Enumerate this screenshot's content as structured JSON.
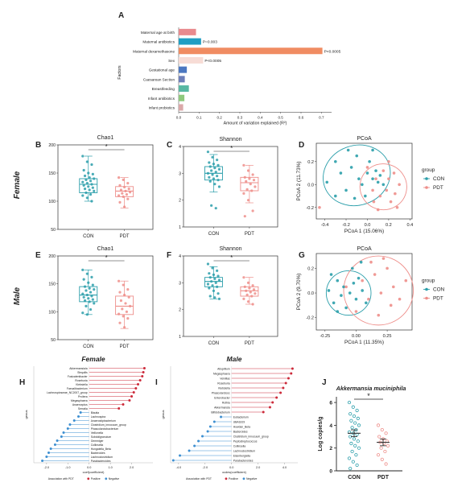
{
  "panel_letters": [
    "A",
    "B",
    "C",
    "D",
    "E",
    "F",
    "G",
    "H",
    "I",
    "J"
  ],
  "panelA": {
    "title": "",
    "ylabel": "Factors",
    "xlabel": "Amount of variation explained (R²)",
    "xticks": [
      "0.0",
      "0.1",
      "0.2",
      "0.3",
      "0.4",
      "0.5",
      "0.6",
      "0.7"
    ],
    "xlim": [
      0,
      0.75
    ],
    "bars": [
      {
        "label": "Maternal age at birth",
        "value": 0.085,
        "color": "#e98a8e",
        "annot": ""
      },
      {
        "label": "Maternal antibiotics",
        "value": 0.11,
        "color": "#1f9ec3",
        "annot": "P=0.003"
      },
      {
        "label": "Maternal dexamethasone",
        "value": 0.705,
        "color": "#f08c62",
        "annot": "P<0.0005"
      },
      {
        "label": "Sex",
        "value": 0.12,
        "color": "#f7dcd6",
        "annot": "P<0.0005"
      },
      {
        "label": "Gestational age",
        "value": 0.04,
        "color": "#4c78c1",
        "annot": ""
      },
      {
        "label": "Caesarean Section",
        "value": 0.03,
        "color": "#6e7fb9",
        "annot": ""
      },
      {
        "label": "Breastfeeding",
        "value": 0.05,
        "color": "#58b8a3",
        "annot": ""
      },
      {
        "label": "Infant antibiotics",
        "value": 0.028,
        "color": "#8fc97d",
        "annot": ""
      },
      {
        "label": "Infant probiotics",
        "value": 0.022,
        "color": "#dba8a8",
        "annot": ""
      }
    ]
  },
  "rowlabels": {
    "female": "Female",
    "male": "Male"
  },
  "groups": [
    "CON",
    "PDT"
  ],
  "legend": {
    "title": "group",
    "items": [
      "CON",
      "PDT"
    ]
  },
  "colors": {
    "con": "#2a9eaa",
    "pdt": "#ee8e8a",
    "neg": "#3d8fd1",
    "pos": "#cc2a3a"
  },
  "panelB": {
    "title": "Chao1",
    "yticks": [
      "50",
      "100",
      "150",
      "200"
    ],
    "ylim": [
      50,
      200
    ],
    "sig": "*",
    "con": {
      "q1": 115,
      "median": 130,
      "q3": 140,
      "low": 100,
      "high": 180,
      "points": [
        180,
        170,
        165,
        155,
        150,
        148,
        145,
        142,
        140,
        138,
        136,
        134,
        132,
        130,
        128,
        126,
        124,
        122,
        120,
        118,
        115,
        112,
        110,
        106,
        100
      ]
    },
    "pdt": {
      "q1": 108,
      "median": 118,
      "q3": 126,
      "low": 88,
      "high": 142,
      "points": [
        142,
        138,
        132,
        128,
        125,
        122,
        120,
        118,
        116,
        114,
        112,
        110,
        108,
        104,
        98,
        90
      ]
    }
  },
  "panelC": {
    "title": "Shannon",
    "yticks": [
      "1",
      "2",
      "3",
      "4"
    ],
    "ylim": [
      1,
      4
    ],
    "sig": "*",
    "con": {
      "q1": 2.75,
      "median": 3.0,
      "q3": 3.25,
      "low": 2.3,
      "high": 3.7,
      "points": [
        3.8,
        3.6,
        3.5,
        3.4,
        3.35,
        3.3,
        3.25,
        3.2,
        3.15,
        3.1,
        3.05,
        3.0,
        2.95,
        2.9,
        2.85,
        2.8,
        2.75,
        2.7,
        2.6,
        2.5,
        1.8,
        1.7
      ]
    },
    "pdt": {
      "q1": 2.35,
      "median": 2.65,
      "q3": 2.85,
      "low": 1.9,
      "high": 3.3,
      "points": [
        3.3,
        3.1,
        2.95,
        2.85,
        2.8,
        2.75,
        2.7,
        2.6,
        2.5,
        2.4,
        2.35,
        2.25,
        2.0,
        1.6,
        1.4
      ]
    }
  },
  "panelD": {
    "title": "PCoA",
    "xlabel": "PCoA 1 (15.06%)",
    "ylabel": "PCoA 2 (11.73%)",
    "xticks": [
      "-0.4",
      "-0.2",
      "0.0",
      "0.2",
      "0.4"
    ],
    "yticks": [
      "-0.2",
      "0.0",
      "0.2"
    ],
    "xlim": [
      -0.48,
      0.42
    ],
    "ylim": [
      -0.3,
      0.36
    ],
    "con": [
      [
        -0.38,
        0.02
      ],
      [
        -0.3,
        0.2
      ],
      [
        -0.25,
        0.1
      ],
      [
        -0.2,
        -0.05
      ],
      [
        -0.15,
        0.15
      ],
      [
        -0.1,
        0.25
      ],
      [
        -0.08,
        0.05
      ],
      [
        -0.05,
        0.0
      ],
      [
        0.0,
        0.1
      ],
      [
        0.02,
        0.2
      ],
      [
        0.05,
        0.05
      ],
      [
        0.08,
        0.12
      ],
      [
        0.1,
        0.02
      ],
      [
        0.12,
        0.08
      ],
      [
        -0.12,
        -0.12
      ],
      [
        -0.02,
        -0.1
      ],
      [
        0.15,
        0.0
      ],
      [
        -0.3,
        -0.1
      ],
      [
        -0.18,
        0.3
      ],
      [
        0.05,
        0.3
      ]
    ],
    "pdt": [
      [
        0.0,
        0.15
      ],
      [
        0.05,
        -0.05
      ],
      [
        0.08,
        0.05
      ],
      [
        0.12,
        -0.1
      ],
      [
        0.15,
        0.12
      ],
      [
        0.18,
        -0.05
      ],
      [
        0.2,
        0.05
      ],
      [
        0.22,
        -0.15
      ],
      [
        0.25,
        0.1
      ],
      [
        0.28,
        -0.2
      ],
      [
        0.3,
        0.0
      ],
      [
        0.1,
        -0.22
      ],
      [
        0.2,
        0.2
      ],
      [
        0.06,
        -0.15
      ],
      [
        0.26,
        -0.08
      ],
      [
        -0.45,
        -0.2
      ]
    ],
    "ell_con": {
      "cx": -0.1,
      "cy": 0.08,
      "rx": 0.32,
      "ry": 0.26,
      "rot": -20
    },
    "ell_pdt": {
      "cx": 0.15,
      "cy": -0.02,
      "rx": 0.22,
      "ry": 0.2,
      "rot": 10
    }
  },
  "panelE": {
    "title": "Chao1",
    "yticks": [
      "50",
      "100",
      "150",
      "200"
    ],
    "ylim": [
      50,
      200
    ],
    "sig": "*",
    "con": {
      "q1": 118,
      "median": 130,
      "q3": 145,
      "low": 95,
      "high": 175,
      "points": [
        175,
        168,
        162,
        158,
        152,
        148,
        145,
        142,
        140,
        138,
        135,
        132,
        130,
        128,
        126,
        124,
        122,
        120,
        118,
        115,
        110,
        104,
        98,
        95
      ]
    },
    "pdt": {
      "q1": 95,
      "median": 110,
      "q3": 128,
      "low": 70,
      "high": 155,
      "points": [
        155,
        148,
        140,
        135,
        130,
        126,
        120,
        115,
        110,
        105,
        100,
        96,
        92,
        88,
        80,
        72
      ]
    }
  },
  "panelF": {
    "title": "Shannon",
    "yticks": [
      "1",
      "2",
      "3",
      "4"
    ],
    "ylim": [
      1,
      4
    ],
    "sig": "*",
    "con": {
      "q1": 2.85,
      "median": 3.05,
      "q3": 3.2,
      "low": 2.4,
      "high": 3.6,
      "points": [
        3.7,
        3.55,
        3.45,
        3.35,
        3.3,
        3.25,
        3.2,
        3.15,
        3.1,
        3.05,
        3.0,
        2.95,
        2.9,
        2.85,
        2.8,
        2.7,
        2.6,
        2.5,
        2.45,
        2.4
      ]
    },
    "pdt": {
      "q1": 2.5,
      "median": 2.7,
      "q3": 2.85,
      "low": 2.2,
      "high": 3.2,
      "points": [
        3.2,
        3.0,
        2.9,
        2.85,
        2.8,
        2.75,
        2.7,
        2.65,
        2.6,
        2.55,
        2.5,
        2.4,
        2.3,
        2.2
      ]
    }
  },
  "panelG": {
    "title": "PCoA",
    "xlabel": "PCoA 1 (11.35%)",
    "ylabel": "PCoA 2 (9.70%)",
    "xticks": [
      "-0.25",
      "0.00",
      "0.25"
    ],
    "yticks": [
      "-0.2",
      "0.0",
      "0.2"
    ],
    "xlim": [
      -0.32,
      0.45
    ],
    "ylim": [
      -0.3,
      0.32
    ],
    "con": [
      [
        -0.22,
        0.02
      ],
      [
        -0.18,
        -0.08
      ],
      [
        -0.15,
        0.1
      ],
      [
        -0.12,
        -0.02
      ],
      [
        -0.1,
        0.05
      ],
      [
        -0.08,
        -0.12
      ],
      [
        -0.05,
        0.0
      ],
      [
        -0.02,
        0.08
      ],
      [
        0.0,
        -0.05
      ],
      [
        0.02,
        0.12
      ],
      [
        0.05,
        0.02
      ],
      [
        -0.15,
        -0.15
      ],
      [
        0.08,
        -0.08
      ],
      [
        -0.03,
        0.2
      ],
      [
        0.04,
        0.25
      ],
      [
        -0.2,
        0.15
      ]
    ],
    "pdt": [
      [
        0.05,
        0.1
      ],
      [
        0.1,
        -0.05
      ],
      [
        0.15,
        0.15
      ],
      [
        0.2,
        0.0
      ],
      [
        0.25,
        0.2
      ],
      [
        0.28,
        -0.1
      ],
      [
        0.3,
        0.05
      ],
      [
        0.35,
        -0.05
      ],
      [
        0.18,
        -0.18
      ],
      [
        0.12,
        0.25
      ],
      [
        -0.08,
        0.05
      ],
      [
        0.0,
        -0.15
      ],
      [
        0.4,
        0.1
      ],
      [
        0.22,
        0.28
      ]
    ],
    "ell_con": {
      "cx": -0.06,
      "cy": 0.0,
      "rx": 0.18,
      "ry": 0.18,
      "rot": 0
    },
    "ell_pdt": {
      "cx": 0.18,
      "cy": 0.02,
      "rx": 0.28,
      "ry": 0.28,
      "rot": 0
    }
  },
  "panelH": {
    "title": "Female",
    "ylabel": "genus",
    "xlabel": "coef(coefficient)",
    "xticks": [
      "-2.0",
      "-1.0",
      "0.0",
      "1.0",
      "2.0"
    ],
    "xlim": [
      -2.6,
      3.0
    ],
    "legend_title": "Association with PDT",
    "legend_pos": "Positive",
    "legend_neg": "Negative",
    "taxa": [
      {
        "name": "Akkermansia/a",
        "value": 2.6
      },
      {
        "name": "Slequilis",
        "value": 2.55
      },
      {
        "name": "Fusicatenibacter",
        "value": 2.5
      },
      {
        "name": "Roseburia",
        "value": 2.4
      },
      {
        "name": "Klebsiella",
        "value": 2.3
      },
      {
        "name": "Faecalibacterium",
        "value": 2.2
      },
      {
        "name": "Lachnospiraceae_NC2007_group",
        "value": 2.1
      },
      {
        "name": "Prvitera",
        "value": 2.0
      },
      {
        "name": "Megasphaera",
        "value": 1.9
      },
      {
        "name": "Anaeroxplus",
        "value": 1.6
      },
      {
        "name": "Serratia",
        "value": 1.4
      },
      {
        "name": "Blautia",
        "value": -0.4
      },
      {
        "name": "Lachnospira",
        "value": -0.5
      },
      {
        "name": "Anaerostipbacterium",
        "value": -0.7
      },
      {
        "name": "Clostridium_innocuum_group",
        "value": -0.9
      },
      {
        "name": "Phascolarctobacterium",
        "value": -1.0
      },
      {
        "name": "Veillonella",
        "value": -1.2
      },
      {
        "name": "Subdoligranulum",
        "value": -1.3
      },
      {
        "name": "Gemmiger",
        "value": -1.5
      },
      {
        "name": "Collinsella",
        "value": -1.6
      },
      {
        "name": "Hungatella_Beta",
        "value": -1.8
      },
      {
        "name": "Bacteroides",
        "value": -1.9
      },
      {
        "name": "Lachnoclostridium",
        "value": -2.0
      },
      {
        "name": "Parabacteroides",
        "value": -2.2
      }
    ]
  },
  "panelI": {
    "title": "Male",
    "ylabel": "genus",
    "xlabel": "ocdes(coefficient)",
    "xticks": [
      "-4.0",
      "-2.0",
      "0.0",
      "2.0",
      "4.0"
    ],
    "xlim": [
      -4.6,
      5.0
    ],
    "legend_title": "Association with PDT",
    "legend_pos": "Positive",
    "legend_neg": "Negative",
    "taxa": [
      {
        "name": "Alloprillum",
        "value": 4.6
      },
      {
        "name": "Megasphaera",
        "value": 4.5
      },
      {
        "name": "Veinillas",
        "value": 4.3
      },
      {
        "name": "Roseburia",
        "value": 4.1
      },
      {
        "name": "Klebsiella",
        "value": 3.9
      },
      {
        "name": "Phascolarctosc",
        "value": 3.7
      },
      {
        "name": "Enterobacter",
        "value": 3.4
      },
      {
        "name": "Rothia",
        "value": 3.1
      },
      {
        "name": "Akkermansia",
        "value": 2.9
      },
      {
        "name": "Bifidobacterium",
        "value": 2.4
      },
      {
        "name": "Eubacterium",
        "value": -0.8
      },
      {
        "name": "UBA1819",
        "value": -1.3
      },
      {
        "name": "Howdan_Beta",
        "value": -1.6
      },
      {
        "name": "Bacteroides",
        "value": -1.8
      },
      {
        "name": "Clostridium_innocuum_group",
        "value": -2.2
      },
      {
        "name": "Peptostreptococcus",
        "value": -2.5
      },
      {
        "name": "Collinsella",
        "value": -2.8
      },
      {
        "name": "Lachnoclostridium",
        "value": -3.2
      },
      {
        "name": "Eisenbergiella",
        "value": -3.9
      },
      {
        "name": "Parabacteroides",
        "value": -4.4
      }
    ]
  },
  "panelJ": {
    "title": "Akkermansia muciniphila",
    "ylabel": "Log copies/g",
    "sig": "*",
    "yticks": [
      "0",
      "2",
      "4",
      "6"
    ],
    "ylim": [
      0,
      6.5
    ],
    "con": {
      "mean": 3.3,
      "sem": 0.3,
      "points": [
        6.0,
        5.6,
        5.3,
        5.0,
        4.8,
        4.6,
        4.4,
        4.2,
        4.0,
        3.8,
        3.6,
        3.4,
        3.3,
        3.2,
        3.0,
        2.8,
        2.6,
        2.4,
        2.2,
        2.0,
        1.7,
        1.4,
        1.1,
        0.8,
        0.5,
        0.2
      ]
    },
    "pdt": {
      "mean": 2.5,
      "sem": 0.3,
      "points": [
        4.0,
        3.6,
        3.3,
        3.0,
        2.8,
        2.6,
        2.5,
        2.4,
        2.2,
        2.0,
        1.7,
        1.4,
        1.0,
        0.6
      ]
    }
  },
  "chart_data": [
    {
      "type": "bar",
      "id": "A",
      "orientation": "horizontal",
      "categories": [
        "Maternal age at birth",
        "Maternal antibiotics",
        "Maternal dexamethasone",
        "Sex",
        "Gestational age",
        "Caesarean Section",
        "Breastfeeding",
        "Infant antibiotics",
        "Infant probiotics"
      ],
      "values": [
        0.085,
        0.11,
        0.705,
        0.12,
        0.04,
        0.03,
        0.05,
        0.028,
        0.022
      ],
      "xlabel": "Amount of variation explained (R²)",
      "ylabel": "Factors",
      "xlim": [
        0,
        0.75
      ],
      "annotations": [
        "",
        "P=0.003",
        "P<0.0005",
        "P<0.0005",
        "",
        "",
        "",
        "",
        ""
      ]
    },
    {
      "type": "box",
      "id": "B",
      "title": "Chao1",
      "row": "Female",
      "categories": [
        "CON",
        "PDT"
      ],
      "medians": [
        130,
        118
      ],
      "ylim": [
        50,
        200
      ]
    },
    {
      "type": "box",
      "id": "C",
      "title": "Shannon",
      "row": "Female",
      "categories": [
        "CON",
        "PDT"
      ],
      "medians": [
        3.0,
        2.65
      ],
      "ylim": [
        1,
        4
      ]
    },
    {
      "type": "scatter",
      "id": "D",
      "title": "PCoA",
      "xlabel": "PCoA 1 (15.06%)",
      "ylabel": "PCoA 2 (11.73%)",
      "series": [
        {
          "name": "CON"
        },
        {
          "name": "PDT"
        }
      ]
    },
    {
      "type": "box",
      "id": "E",
      "title": "Chao1",
      "row": "Male",
      "categories": [
        "CON",
        "PDT"
      ],
      "medians": [
        130,
        110
      ],
      "ylim": [
        50,
        200
      ]
    },
    {
      "type": "box",
      "id": "F",
      "title": "Shannon",
      "row": "Male",
      "categories": [
        "CON",
        "PDT"
      ],
      "medians": [
        3.05,
        2.7
      ],
      "ylim": [
        1,
        4
      ]
    },
    {
      "type": "scatter",
      "id": "G",
      "title": "PCoA",
      "xlabel": "PCoA 1 (11.35%)",
      "ylabel": "PCoA 2 (9.70%)",
      "series": [
        {
          "name": "CON"
        },
        {
          "name": "PDT"
        }
      ]
    },
    {
      "type": "bar",
      "id": "H",
      "title": "Female",
      "orientation": "horizontal",
      "style": "lollipop"
    },
    {
      "type": "bar",
      "id": "I",
      "title": "Male",
      "orientation": "horizontal",
      "style": "lollipop"
    },
    {
      "type": "scatter",
      "id": "J",
      "title": "Akkermansia muciniphila",
      "ylabel": "Log copies/g",
      "categories": [
        "CON",
        "PDT"
      ],
      "means": [
        3.3,
        2.5
      ],
      "ylim": [
        0,
        6.5
      ]
    }
  ]
}
